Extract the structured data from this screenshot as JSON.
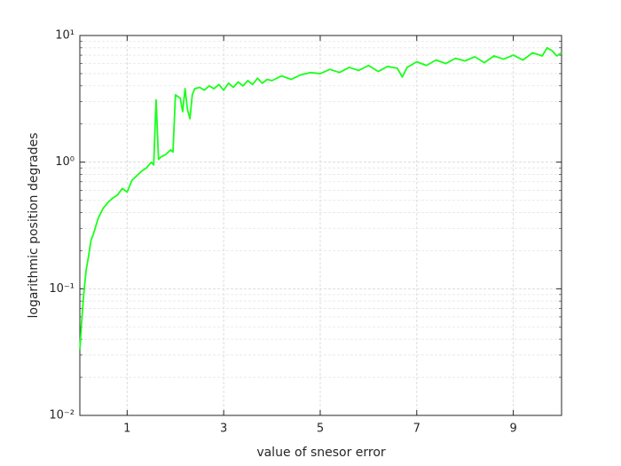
{
  "chart_data": {
    "type": "line",
    "xlabel": "value of snesor error",
    "ylabel": "logarithmic position degrades",
    "color": "#1aff1a",
    "log_y": true,
    "grid": true,
    "minor_grid": true,
    "xlim": [
      0.02,
      10
    ],
    "xticks": [
      1,
      3,
      5,
      7,
      9
    ],
    "ylim": [
      0.01,
      10
    ],
    "yticks": [
      {
        "value": 0.01,
        "label": "10⁻²"
      },
      {
        "value": 0.1,
        "label": "10⁻¹"
      },
      {
        "value": 1,
        "label": "10⁰"
      },
      {
        "value": 10,
        "label": "10¹"
      }
    ],
    "x": [
      0.02,
      0.05,
      0.1,
      0.15,
      0.2,
      0.25,
      0.3,
      0.4,
      0.5,
      0.6,
      0.7,
      0.8,
      0.9,
      1.0,
      1.1,
      1.2,
      1.3,
      1.4,
      1.5,
      1.55,
      1.6,
      1.65,
      1.7,
      1.8,
      1.9,
      1.95,
      2.0,
      2.1,
      2.15,
      2.2,
      2.25,
      2.3,
      2.35,
      2.4,
      2.5,
      2.6,
      2.7,
      2.8,
      2.9,
      3.0,
      3.1,
      3.2,
      3.3,
      3.4,
      3.5,
      3.6,
      3.7,
      3.8,
      3.9,
      4.0,
      4.2,
      4.4,
      4.6,
      4.8,
      5.0,
      5.2,
      5.4,
      5.6,
      5.8,
      6.0,
      6.2,
      6.4,
      6.6,
      6.7,
      6.8,
      7.0,
      7.2,
      7.4,
      7.6,
      7.8,
      8.0,
      8.2,
      8.4,
      8.6,
      8.8,
      9.0,
      9.2,
      9.4,
      9.6,
      9.7,
      9.8,
      9.9,
      10.0
    ],
    "values": [
      0.033,
      0.05,
      0.09,
      0.14,
      0.18,
      0.24,
      0.27,
      0.36,
      0.43,
      0.48,
      0.52,
      0.55,
      0.62,
      0.58,
      0.72,
      0.78,
      0.85,
      0.9,
      1.0,
      0.95,
      3.1,
      1.05,
      1.1,
      1.15,
      1.25,
      1.2,
      3.4,
      3.2,
      2.5,
      3.8,
      2.6,
      2.2,
      3.4,
      3.8,
      3.9,
      3.7,
      4.0,
      3.8,
      4.1,
      3.7,
      4.2,
      3.9,
      4.3,
      4.0,
      4.4,
      4.1,
      4.6,
      4.2,
      4.5,
      4.4,
      4.8,
      4.5,
      4.9,
      5.1,
      5.0,
      5.4,
      5.1,
      5.6,
      5.3,
      5.8,
      5.2,
      5.7,
      5.5,
      4.7,
      5.6,
      6.2,
      5.8,
      6.4,
      6.0,
      6.6,
      6.3,
      6.8,
      6.1,
      6.9,
      6.5,
      7.0,
      6.4,
      7.3,
      6.9,
      8.0,
      7.6,
      6.9,
      7.3
    ]
  }
}
